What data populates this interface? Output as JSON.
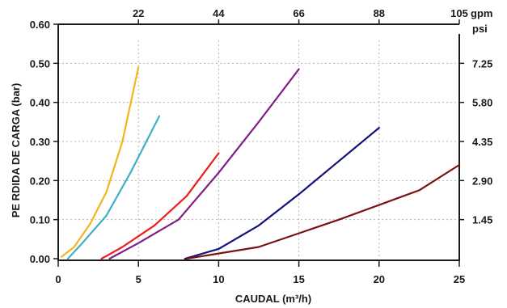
{
  "chart_data": {
    "type": "line",
    "xlabel": "CAUDAL (m³/h)",
    "ylabel": "PE RDIDA DE CARGA (bar)",
    "xlim": [
      0,
      25
    ],
    "ylim": [
      0,
      0.6
    ],
    "x_ticks": [
      "0",
      "5",
      "10",
      "15",
      "20",
      "25"
    ],
    "y_ticks": [
      "0.00",
      "0.10",
      "0.20",
      "0.30",
      "0.40",
      "0.50",
      "0.60"
    ],
    "top_axis": {
      "unit": "gpm",
      "ticks": [
        {
          "label": "22",
          "x": 5
        },
        {
          "label": "44",
          "x": 10
        },
        {
          "label": "66",
          "x": 15
        },
        {
          "label": "88",
          "x": 20
        },
        {
          "label": "105",
          "x": 25
        }
      ]
    },
    "right_axis": {
      "unit": "psi",
      "ticks": [
        {
          "label": "1.45",
          "y": 0.1
        },
        {
          "label": "2.90",
          "y": 0.2
        },
        {
          "label": "4.35",
          "y": 0.3
        },
        {
          "label": "5.80",
          "y": 0.4
        },
        {
          "label": "7.25",
          "y": 0.5
        }
      ]
    },
    "grid": true,
    "series": [
      {
        "color": "#f2b51e",
        "x": [
          0.2,
          1.0,
          2.0,
          3.0,
          4.0,
          5.0
        ],
        "y": [
          0.005,
          0.03,
          0.09,
          0.17,
          0.3,
          0.49
        ]
      },
      {
        "color": "#3eb0c5",
        "x": [
          0.6,
          1.5,
          3.0,
          4.5,
          6.3
        ],
        "y": [
          0.0,
          0.04,
          0.11,
          0.22,
          0.365
        ]
      },
      {
        "color": "#ee1c1c",
        "x": [
          2.7,
          4.0,
          6.0,
          8.0,
          10.0
        ],
        "y": [
          0.0,
          0.03,
          0.085,
          0.16,
          0.27
        ]
      },
      {
        "color": "#7f1f86",
        "x": [
          3.2,
          5.0,
          7.5,
          10.0,
          12.5,
          15.0
        ],
        "y": [
          0.0,
          0.04,
          0.1,
          0.22,
          0.35,
          0.485
        ]
      },
      {
        "color": "#12127a",
        "x": [
          7.9,
          10.0,
          12.5,
          15.0,
          17.5,
          20.0
        ],
        "y": [
          0.0,
          0.025,
          0.085,
          0.165,
          0.25,
          0.335
        ]
      },
      {
        "color": "#7a1212",
        "x": [
          8.0,
          12.5,
          17.5,
          22.5,
          25.0
        ],
        "y": [
          0.0,
          0.03,
          0.1,
          0.175,
          0.24
        ]
      }
    ]
  }
}
